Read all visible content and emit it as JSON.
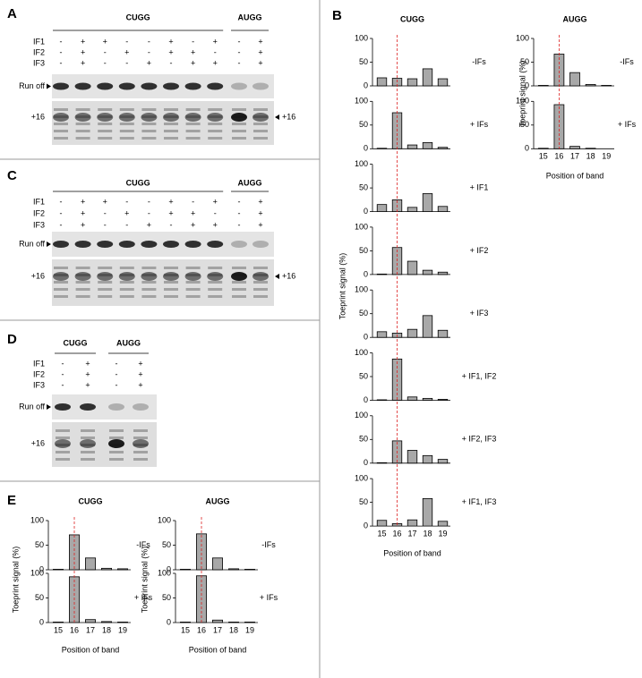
{
  "panels": [
    "A",
    "B",
    "C",
    "D",
    "E"
  ],
  "gels": [
    {
      "row_names": [
        "IF1",
        "IF2",
        "IF3"
      ],
      "groups": [
        {
          "name": "CUGG",
          "signs": [
            [
              "-",
              "+",
              "+",
              "-",
              "-",
              "+",
              "-",
              "+"
            ],
            [
              "-",
              "+",
              "-",
              "+",
              "-",
              "+",
              "+",
              "-"
            ],
            [
              "-",
              "+",
              "-",
              "-",
              "+",
              "-",
              "+",
              "+"
            ]
          ]
        },
        {
          "name": "AUGG",
          "signs": [
            [
              "-",
              "+"
            ],
            [
              "-",
              "+"
            ],
            [
              "-",
              "+"
            ]
          ]
        }
      ],
      "band_labels": [
        "Run off",
        "+16"
      ],
      "side_label": "+16"
    },
    {
      "row_names": [
        "IF1",
        "IF2",
        "IF3"
      ],
      "groups": [
        {
          "name": "CUGG",
          "signs": [
            [
              "-",
              "+",
              "+",
              "-",
              "-",
              "+",
              "-",
              "+"
            ],
            [
              "-",
              "+",
              "-",
              "+",
              "-",
              "+",
              "+",
              "-"
            ],
            [
              "-",
              "+",
              "-",
              "-",
              "+",
              "-",
              "+",
              "+"
            ]
          ]
        },
        {
          "name": "AUGG",
          "signs": [
            [
              "-",
              "+"
            ],
            [
              "-",
              "+"
            ],
            [
              "-",
              "+"
            ]
          ]
        }
      ],
      "band_labels": [
        "Run off",
        "+16"
      ],
      "side_label": "+16"
    },
    {
      "row_names": [
        "IF1",
        "IF2",
        "IF3"
      ],
      "groups": [
        {
          "name": "CUGG",
          "signs": [
            [
              "-",
              "+"
            ],
            [
              "-",
              "+"
            ],
            [
              "-",
              "+"
            ]
          ]
        },
        {
          "name": "AUGG",
          "signs": [
            [
              "-",
              "+"
            ],
            [
              "-",
              "+"
            ],
            [
              "-",
              "+"
            ]
          ]
        }
      ],
      "band_labels": [
        "Run off",
        "+16"
      ]
    }
  ],
  "chart_data": [
    {
      "type": "bar",
      "title": "CUGG",
      "label": "-IFs",
      "values": [
        17,
        16,
        15,
        36,
        15
      ],
      "color": "#a8a8a8",
      "ylim": [
        0,
        100
      ],
      "yticks": [
        0,
        50,
        100
      ],
      "ylabel": "Toeprint signal (%)"
    },
    {
      "type": "bar",
      "label": "+ IFs",
      "values": [
        1,
        76,
        8,
        13,
        3
      ],
      "color": "#a8a8a8",
      "ylim": [
        0,
        100
      ],
      "yticks": [
        0,
        50,
        100
      ]
    },
    {
      "type": "bar",
      "label": "+ IF1",
      "values": [
        15,
        25,
        9,
        38,
        11
      ],
      "color": "#a8a8a8",
      "ylim": [
        0,
        100
      ],
      "yticks": [
        0,
        50,
        100
      ]
    },
    {
      "type": "bar",
      "label": "+ IF2",
      "values": [
        1,
        57,
        28,
        9,
        5
      ],
      "color": "#a8a8a8",
      "ylim": [
        0,
        100
      ],
      "yticks": [
        0,
        50,
        100
      ]
    },
    {
      "type": "bar",
      "label": "+ IF3",
      "values": [
        12,
        9,
        17,
        46,
        15
      ],
      "color": "#a8a8a8",
      "ylim": [
        0,
        100
      ],
      "yticks": [
        0,
        50,
        100
      ]
    },
    {
      "type": "bar",
      "label": "+ IF1, IF2",
      "values": [
        1,
        87,
        7,
        4,
        2
      ],
      "color": "#a8a8a8",
      "ylim": [
        0,
        100
      ],
      "yticks": [
        0,
        50,
        100
      ]
    },
    {
      "type": "bar",
      "label": "+ IF2, IF3",
      "values": [
        1,
        47,
        27,
        16,
        8
      ],
      "color": "#a8a8a8",
      "ylim": [
        0,
        100
      ],
      "yticks": [
        0,
        50,
        100
      ]
    },
    {
      "type": "bar",
      "label": "+ IF1, IF3",
      "values": [
        12,
        5,
        13,
        58,
        10
      ],
      "color": "#a8a8a8",
      "ylim": [
        0,
        100
      ],
      "yticks": [
        0,
        50,
        100
      ],
      "categories": [
        "15",
        "16",
        "17",
        "18",
        "19"
      ],
      "xlabel": "Position of band"
    },
    {
      "type": "bar",
      "title": "AUGG",
      "label": "-IFs",
      "values": [
        1,
        67,
        28,
        3,
        1
      ],
      "color": "#a8a8a8",
      "ylim": [
        0,
        100
      ],
      "yticks": [
        0,
        50,
        100
      ],
      "ylabel": "Toeprint signal (%)"
    },
    {
      "type": "bar",
      "label": "+ IFs",
      "values": [
        1,
        93,
        5,
        1,
        0
      ],
      "color": "#a8a8a8",
      "ylim": [
        0,
        100
      ],
      "yticks": [
        0,
        50,
        100
      ],
      "categories": [
        "15",
        "16",
        "17",
        "18",
        "19"
      ],
      "xlabel": "Position of band"
    },
    {
      "type": "bar",
      "title": "CUGG",
      "label": "-IFs",
      "values": [
        1,
        71,
        24,
        3,
        2
      ],
      "color": "#a8a8a8",
      "ylim": [
        0,
        100
      ],
      "yticks": [
        0,
        50,
        100
      ],
      "ylabel": "Toeprint signal (%)"
    },
    {
      "type": "bar",
      "label": "+ IFs",
      "values": [
        1,
        93,
        6,
        2,
        1
      ],
      "color": "#a8a8a8",
      "ylim": [
        0,
        100
      ],
      "yticks": [
        0,
        50,
        100
      ],
      "categories": [
        "15",
        "16",
        "17",
        "18",
        "19"
      ],
      "xlabel": "Position of band"
    },
    {
      "type": "bar",
      "title": "AUGG",
      "label": "-IFs",
      "values": [
        1,
        73,
        24,
        2,
        1
      ],
      "color": "#a8a8a8",
      "ylim": [
        0,
        100
      ],
      "yticks": [
        0,
        50,
        100
      ],
      "ylabel": "Toeprint signal (%)"
    },
    {
      "type": "bar",
      "label": "+ IFs",
      "values": [
        1,
        95,
        5,
        1,
        1
      ],
      "color": "#a8a8a8",
      "ylim": [
        0,
        100
      ],
      "yticks": [
        0,
        50,
        100
      ],
      "categories": [
        "15",
        "16",
        "17",
        "18",
        "19"
      ],
      "xlabel": "Position of band"
    }
  ]
}
